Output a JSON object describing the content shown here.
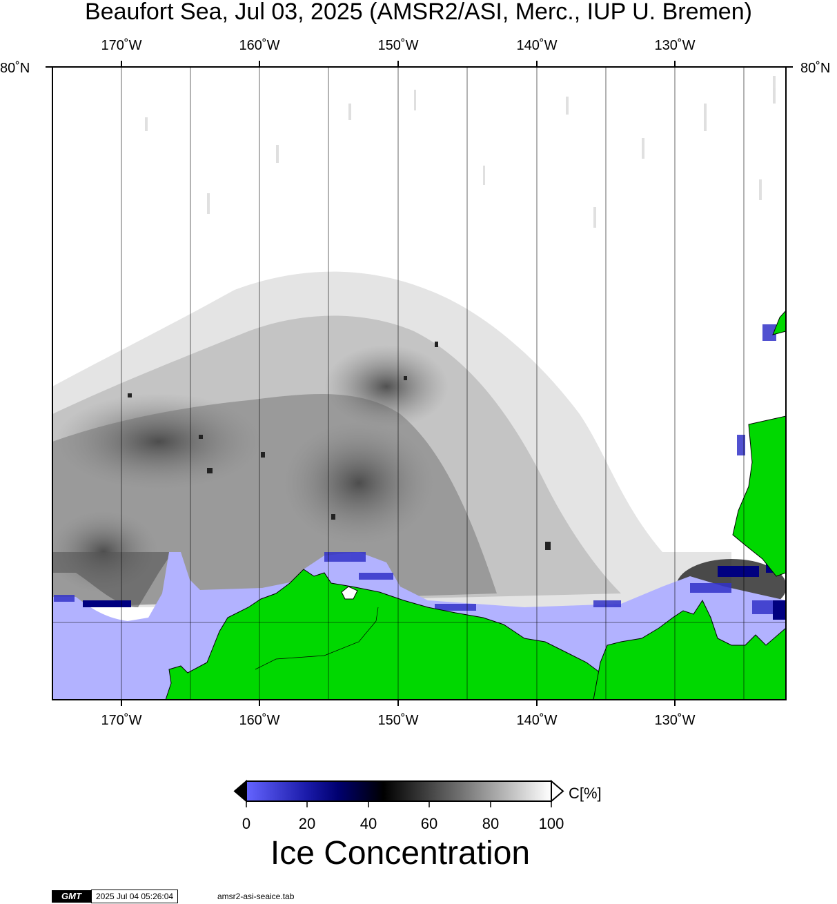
{
  "title": "Beaufort Sea, Jul 03, 2025 (AMSR2/ASI, Merc., IUP U. Bremen)",
  "longitude_ticks": [
    "170˚W",
    "160˚W",
    "150˚W",
    "140˚W",
    "130˚W"
  ],
  "latitude_ticks": {
    "left": "80˚N",
    "right": "80˚N"
  },
  "colorbar": {
    "labels": [
      "0",
      "20",
      "40",
      "60",
      "80",
      "100"
    ],
    "unit": "C[%]",
    "title": "Ice Concentration",
    "range": [
      0,
      100
    ]
  },
  "colors": {
    "land": "#00d800",
    "open_water": "#b2b2ff",
    "low_ice": "#6464ff",
    "mid_low_ice": "#000080",
    "mid_ice": "#000000",
    "high_ice": "#ffffff"
  },
  "footer": {
    "logo": "GMT",
    "timestamp": "2025 Jul 04 05:26:04",
    "command": "amsr2-asi-seaice.tab"
  }
}
